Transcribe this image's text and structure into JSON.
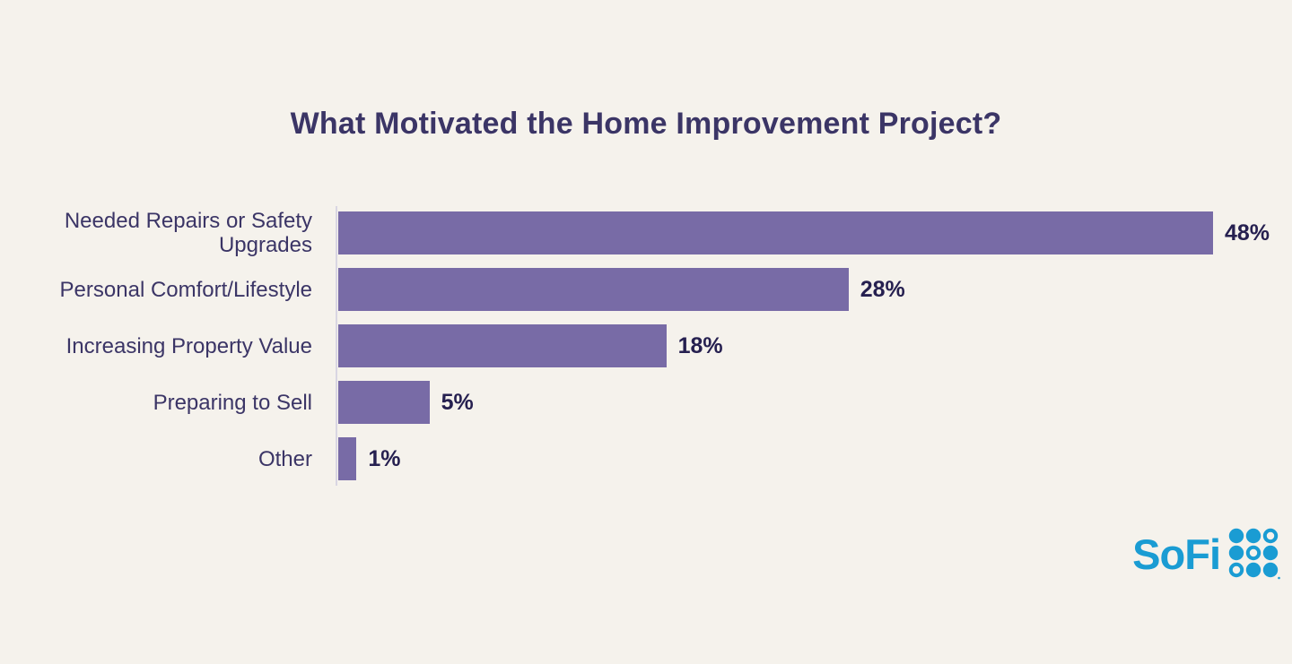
{
  "page": {
    "background_color": "#f5f2ec"
  },
  "chart_data": {
    "type": "bar",
    "orientation": "horizontal",
    "title": "What Motivated the Home Improvement Project?",
    "categories": [
      "Needed Repairs or Safety Upgrades",
      "Personal Comfort/Lifestyle",
      "Increasing Property Value",
      "Preparing to Sell",
      "Other"
    ],
    "values": [
      48,
      28,
      18,
      5,
      1
    ],
    "value_labels": [
      "48%",
      "28%",
      "18%",
      "5%",
      "1%"
    ],
    "unit": "%",
    "xlim": [
      0,
      48
    ],
    "grid": false,
    "legend": false,
    "bar_color": "#786ba6",
    "title_color": "#3b3566",
    "category_label_color": "#3b3566",
    "value_label_color": "#262050",
    "axis_line_color": "#d9d6e2"
  },
  "branding": {
    "logo_text": "SoFi",
    "logo_color": "#1a9cd3",
    "logo_grid_icon": "sofi-dot-grid",
    "logo_grid_pattern": [
      [
        "filled",
        "filled",
        "outline"
      ],
      [
        "filled",
        "outline",
        "filled"
      ],
      [
        "outline",
        "filled",
        "filled"
      ]
    ],
    "trademark": "®"
  }
}
